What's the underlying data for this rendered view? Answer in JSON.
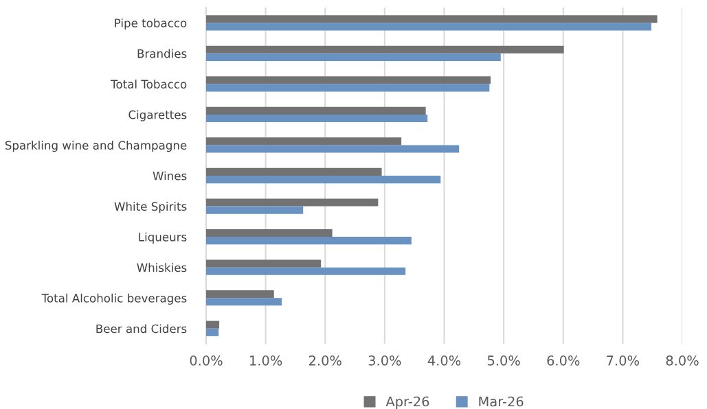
{
  "chart_data": {
    "type": "bar",
    "orientation": "horizontal",
    "categories": [
      "Pipe tobacco",
      "Brandies",
      "Total Tobacco",
      "Cigarettes",
      "Sparkling wine and Champagne",
      "Wines",
      "White Spirits",
      "Liqueurs",
      "Whiskies",
      "Total Alcoholic beverages",
      "Beer and Ciders"
    ],
    "series": [
      {
        "name": "Apr-26",
        "color": "#717271",
        "values": [
          7.58,
          6.01,
          4.78,
          3.69,
          3.28,
          2.95,
          2.89,
          2.12,
          1.93,
          1.14,
          0.22
        ]
      },
      {
        "name": "Mar-26",
        "color": "#6a92c0",
        "values": [
          7.48,
          4.95,
          4.76,
          3.72,
          4.25,
          3.94,
          1.63,
          3.45,
          3.35,
          1.27,
          0.21
        ]
      }
    ],
    "xlim": [
      0,
      8
    ],
    "xticks": [
      {
        "value": 0,
        "label": "0.0%"
      },
      {
        "value": 1,
        "label": "1.0%"
      },
      {
        "value": 2,
        "label": "2.0%"
      },
      {
        "value": 3,
        "label": "3.0%"
      },
      {
        "value": 4,
        "label": "4.0%"
      },
      {
        "value": 5,
        "label": "5.0%"
      },
      {
        "value": 6,
        "label": "6.0%"
      },
      {
        "value": 7,
        "label": "7.0%"
      },
      {
        "value": 8,
        "label": "8.0%"
      }
    ],
    "grid": "x",
    "legend": "bottom"
  }
}
